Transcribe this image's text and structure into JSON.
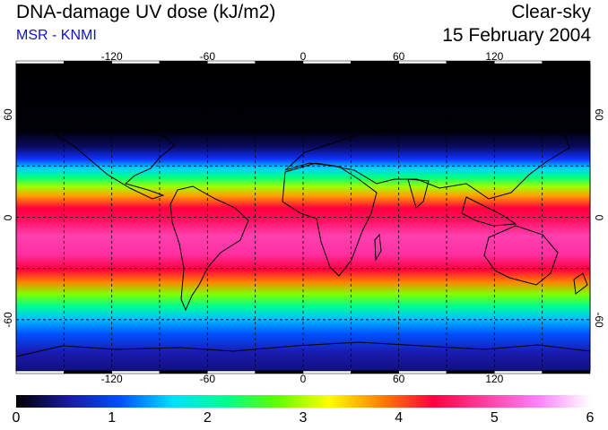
{
  "header": {
    "title": "DNA-damage UV dose (kJ/m2)",
    "subtitle": "MSR - KNMI",
    "sky_condition": "Clear-sky",
    "date": "15 February 2004"
  },
  "map": {
    "lon_labels": [
      "-120",
      "-60",
      "0",
      "60",
      "120"
    ],
    "lat_labels": [
      "60",
      "0",
      "-60"
    ],
    "lon_range": [
      -180,
      180
    ],
    "lat_range": [
      -90,
      90
    ],
    "grid_spacing_deg": 30,
    "grid_style": "dashed"
  },
  "colorbar": {
    "min": 0,
    "max": 6,
    "labels": [
      "0",
      "1",
      "2",
      "3",
      "4",
      "5",
      "6"
    ],
    "colors": [
      "#000000",
      "#1a1aa0",
      "#0050ff",
      "#00e0ff",
      "#00ff90",
      "#60ff00",
      "#ffff00",
      "#ff8000",
      "#ff0040",
      "#ff40a0",
      "#ff80ff",
      "#ffffff"
    ]
  }
}
